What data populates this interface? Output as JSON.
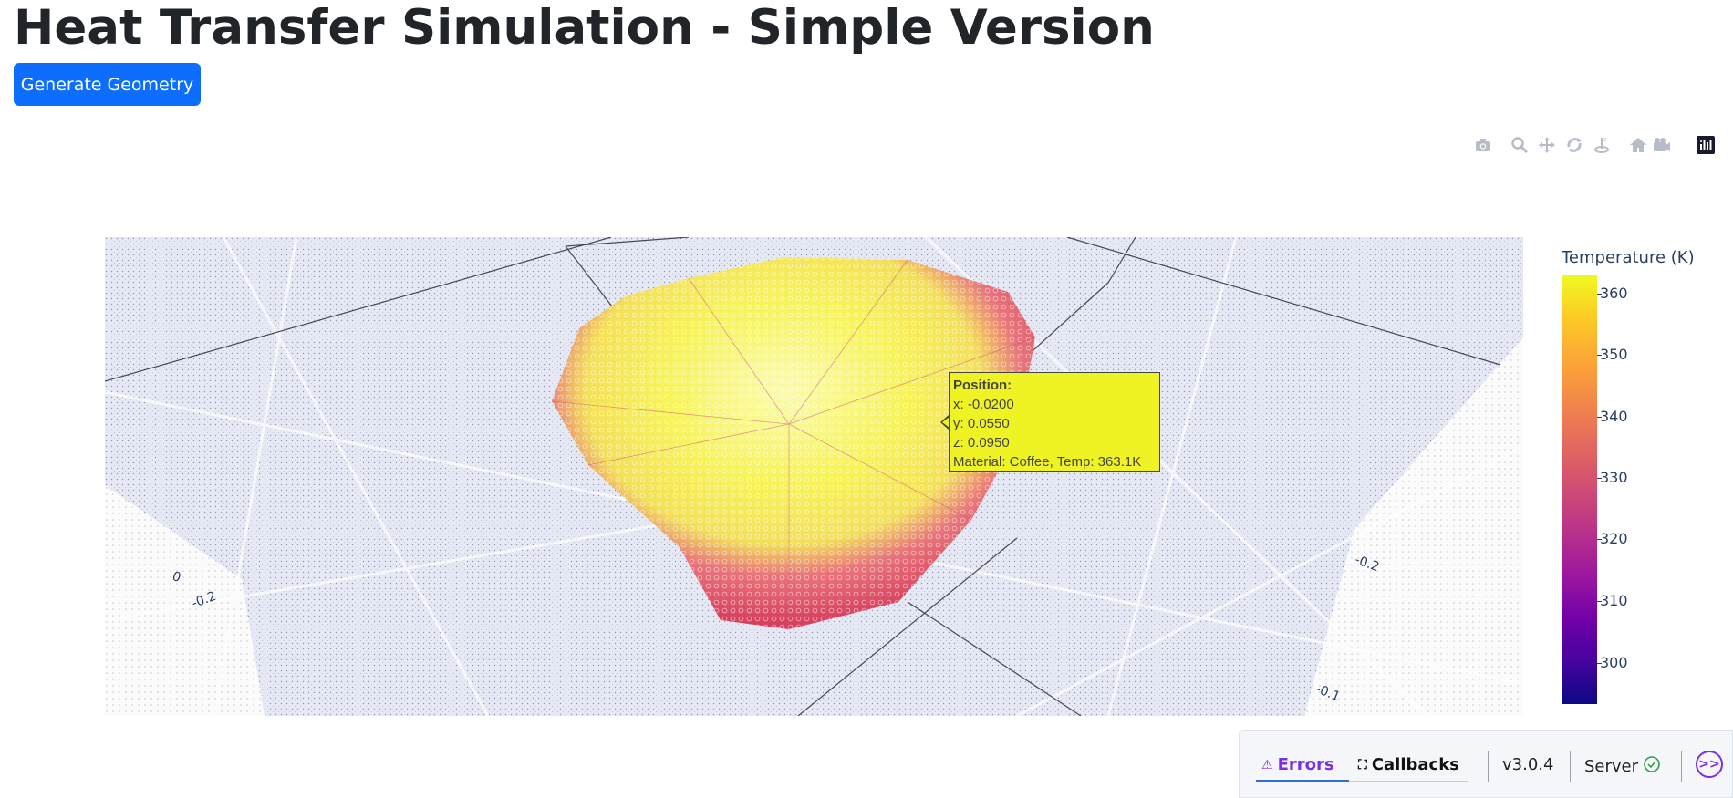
{
  "page": {
    "title": "Heat Transfer Simulation - Simple Version",
    "generate_button": "Generate Geometry"
  },
  "modebar": {
    "icons": [
      "camera-icon",
      "zoom-icon",
      "pan-icon",
      "orbit-rotation-icon",
      "turntable-rotation-icon",
      "reset-camera-default-icon",
      "reset-camera-last-save-icon",
      "plotly-logo-icon"
    ]
  },
  "plot": {
    "axis_ticks": [
      "0",
      "-0.2",
      "-0.2",
      "-0.1"
    ],
    "hover": {
      "title": "Position:",
      "x": "x: -0.0200",
      "y": "y: 0.0550",
      "z": "z: 0.0950",
      "info": "Material: Coffee, Temp: 363.1K"
    },
    "colorbar": {
      "title": "Temperature (K)",
      "ticks": [
        "360",
        "350",
        "340",
        "330",
        "320",
        "310",
        "300"
      ],
      "colors": [
        "#0d0887",
        "#7201a8",
        "#bd3786",
        "#ed7953",
        "#fdca26",
        "#f0f921"
      ]
    }
  },
  "devtools": {
    "errors_label": "Errors",
    "callbacks_label": "Callbacks",
    "version": "v3.0.4",
    "server_label": "Server",
    "accent": "#7a2ee5"
  }
}
